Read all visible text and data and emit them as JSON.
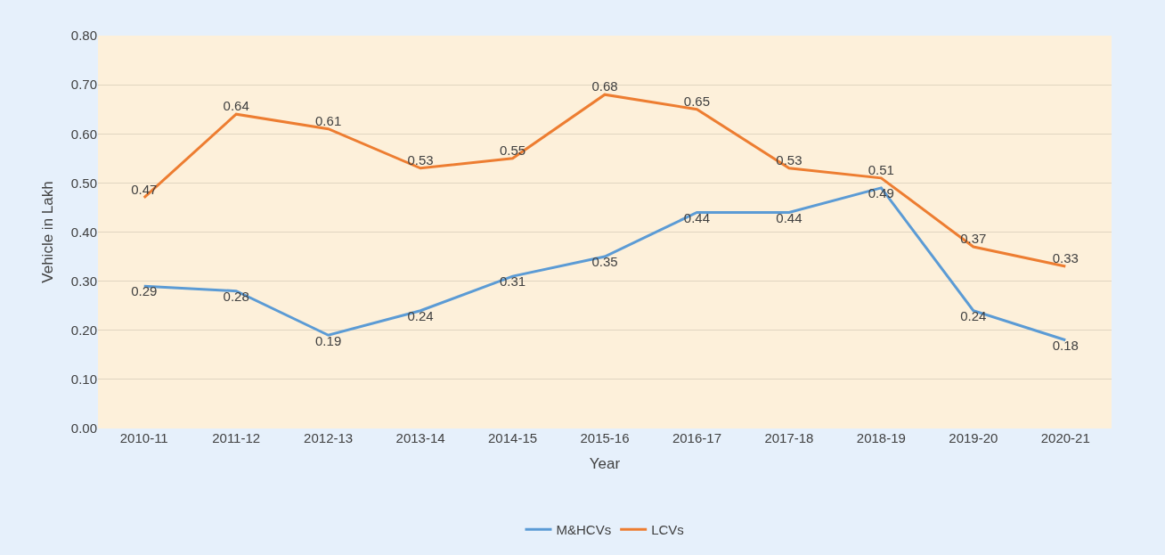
{
  "chart_data": {
    "type": "line",
    "xlabel": "Year",
    "ylabel": "Vehicle in Lakh",
    "categories": [
      "2010-11",
      "2011-12",
      "2012-13",
      "2013-14",
      "2014-15",
      "2015-16",
      "2016-17",
      "2017-18",
      "2018-19",
      "2019-20",
      "2020-21"
    ],
    "series": [
      {
        "name": "M&HCVs",
        "color": "#5b9bd5",
        "values": [
          0.29,
          0.28,
          0.19,
          0.24,
          0.31,
          0.35,
          0.44,
          0.44,
          0.49,
          0.24,
          0.18
        ]
      },
      {
        "name": "LCVs",
        "color": "#ed7d31",
        "values": [
          0.47,
          0.64,
          0.61,
          0.53,
          0.55,
          0.68,
          0.65,
          0.53,
          0.51,
          0.37,
          0.33
        ]
      }
    ],
    "ylim": [
      0,
      0.8
    ],
    "yticks": [
      {
        "value": 0,
        "label": "0.00"
      },
      {
        "value": 0.1,
        "label": "0.10"
      },
      {
        "value": 0.2,
        "label": "0.20"
      },
      {
        "value": 0.3,
        "label": "0.30"
      },
      {
        "value": 0.4,
        "label": "0.40"
      },
      {
        "value": 0.5,
        "label": "0.50"
      },
      {
        "value": 0.6,
        "label": "0.60"
      },
      {
        "value": 0.7,
        "label": "0.70"
      },
      {
        "value": 0.8,
        "label": "0.80"
      }
    ],
    "grid": "y",
    "legend": "bottom",
    "data_labels": true,
    "marker": "none",
    "line_style": "solid"
  }
}
